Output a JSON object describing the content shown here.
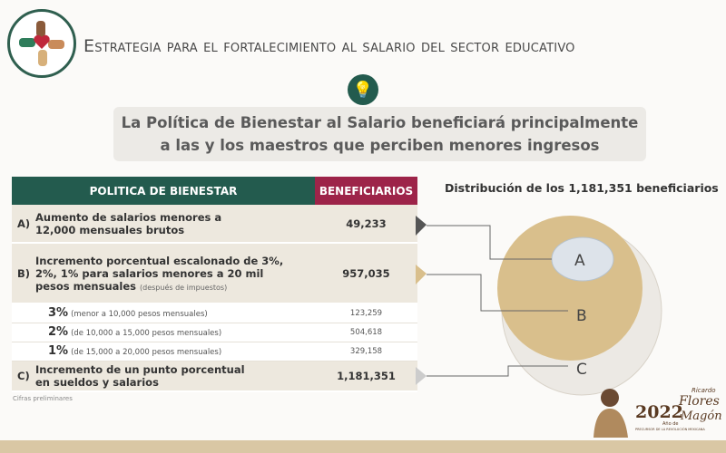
{
  "header": {
    "title": "Estrategia para el fortalecimiento al salario del sector educativo",
    "logo_icon": "hands-heart-icon"
  },
  "subtitle": {
    "icon": "lightbulb-icon",
    "line1": "La Política de Bienestar al Salario beneficiará principalmente",
    "line2": "a las y los maestros que perciben menores ingresos"
  },
  "table": {
    "headers": [
      "POLITICA DE BIENESTAR",
      "BENEFICIARIOS"
    ],
    "rows": [
      {
        "key": "A)",
        "text": "Aumento de salarios menores a 12,000 mensuales brutos",
        "value": "49,233"
      },
      {
        "key": "B)",
        "text": "Incremento porcentual escalonado de 3%, 2%, 1% para salarios menores a 20 mil pesos mensuales",
        "note": "(después de impuestos)",
        "value": "957,035"
      },
      {
        "pct": "3%",
        "text": "(menor a 10,000 pesos mensuales)",
        "value": "123,259"
      },
      {
        "pct": "2%",
        "text": "(de 10,000 a 15,000 pesos mensuales)",
        "value": "504,618"
      },
      {
        "pct": "1%",
        "text": "(de 15,000 a 20,000 pesos mensuales)",
        "value": "329,158"
      },
      {
        "key": "C)",
        "text": "Incremento de un punto porcentual en sueldos y salarios",
        "value": "1,181,351"
      }
    ],
    "footnote": "Cifras preliminares"
  },
  "diagram": {
    "title": "Distribución de los 1,181,351 beneficiarios",
    "labels": [
      "A",
      "B",
      "C"
    ],
    "colors": {
      "A": "#dde3ea",
      "B": "#d9bf8c",
      "C": "#ece9e4"
    }
  },
  "seal": {
    "year": "2022",
    "line1": "Año de",
    "name1": "Ricardo",
    "name2": "Flores",
    "name3": "Magón",
    "tagline": "PRECURSOR DE LA REVOLUCIÓN MEXICANA"
  },
  "colors": {
    "green": "#235b4e",
    "maroon": "#9d2449",
    "tan": "#d9c7a4"
  }
}
